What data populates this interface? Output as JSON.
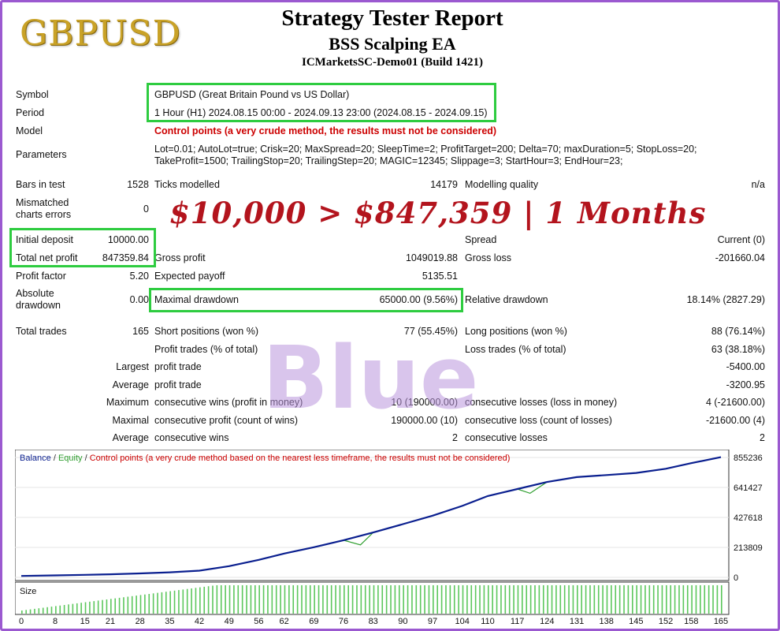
{
  "header": {
    "logo": "GBPUSD",
    "title": "Strategy Tester Report",
    "ea_name": "BSS Scalping EA",
    "server": "ICMarketsSC-Demo01 (Build 1421)"
  },
  "settings": {
    "symbol_label": "Symbol",
    "symbol_value": "GBPUSD (Great Britain Pound vs US Dollar)",
    "period_label": "Period",
    "period_value": "1 Hour (H1) 2024.08.15 00:00 - 2024.09.13 23:00 (2024.08.15 - 2024.09.15)",
    "model_label": "Model",
    "model_value": "Control points (a very crude method, the results must not be considered)",
    "parameters_label": "Parameters",
    "parameters_line1": "Lot=0.01; AutoLot=true; Crisk=20; MaxSpread=20; SleepTime=2; ProfitTarget=200; Delta=70; maxDuration=5; StopLoss=20;",
    "parameters_line2": "TakeProfit=1500; TrailingStop=20; TrailingStep=20; MAGIC=12345; Slippage=3; StartHour=3; EndHour=23;"
  },
  "stats": {
    "bars_label": "Bars in test",
    "bars_value": "1528",
    "ticks_label": "Ticks modelled",
    "ticks_value": "14179",
    "quality_label": "Modelling quality",
    "quality_value": "n/a",
    "mismatch_label_1": "Mismatched",
    "mismatch_label_2": "charts errors",
    "mismatch_value": "0",
    "initial_deposit_label": "Initial deposit",
    "initial_deposit_value": "10000.00",
    "spread_label": "Spread",
    "spread_value": "Current (0)",
    "net_profit_label": "Total net profit",
    "net_profit_value": "847359.84",
    "gross_profit_label": "Gross profit",
    "gross_profit_value": "1049019.88",
    "gross_loss_label": "Gross loss",
    "gross_loss_value": "-201660.04",
    "profit_factor_label": "Profit factor",
    "profit_factor_value": "5.20",
    "expected_payoff_label": "Expected payoff",
    "expected_payoff_value": "5135.51",
    "abs_dd_label_1": "Absolute",
    "abs_dd_label_2": "drawdown",
    "abs_dd_value": "0.00",
    "max_dd_label": "Maximal drawdown",
    "max_dd_value": "65000.00 (9.56%)",
    "rel_dd_label": "Relative drawdown",
    "rel_dd_value": "18.14% (2827.29)",
    "total_trades_label": "Total trades",
    "total_trades_value": "165",
    "short_label": "Short positions (won %)",
    "short_value": "77 (55.45%)",
    "long_label": "Long positions (won %)",
    "long_value": "88 (76.14%)",
    "profit_trades_label": "Profit trades (% of total)",
    "loss_trades_label": "Loss trades (% of total)",
    "loss_trades_value": "63 (38.18%)",
    "largest_label": "Largest",
    "largest_profit_label": "profit trade",
    "largest_loss_value": "-5400.00",
    "average_label": "Average",
    "average_profit_label": "profit trade",
    "average_loss_value": "-3200.95",
    "maximum_label": "Maximum",
    "max_cons_wins_label": "consecutive wins (profit in money)",
    "max_cons_wins_value": "10 (190000.00)",
    "max_cons_losses_label": "consecutive losses (loss in money)",
    "max_cons_losses_value": "4 (-21600.00)",
    "maximal_label": "Maximal",
    "maximal_profit_label": "consecutive profit (count of wins)",
    "maximal_profit_value": "190000.00 (10)",
    "maximal_loss_label": "consecutive loss (count of losses)",
    "maximal_loss_value": "-21600.00 (4)",
    "avg_label": "Average",
    "avg_wins_label": "consecutive wins",
    "avg_wins_value": "2",
    "avg_losses_label": "consecutive losses",
    "avg_losses_value": "2"
  },
  "promo": "$10,000 > $847,359 | 1 Months",
  "watermark": "Blue",
  "chart_legend": {
    "balance": "Balance",
    "sep1": " / ",
    "equity": "Equity",
    "sep2": " / ",
    "note": "Control points (a very crude method based on the nearest less timeframe, the results must not be considered)"
  },
  "size_label": "Size",
  "colors": {
    "balance": "#0a1f8f",
    "equity": "#2e9e2e",
    "highlight_box": "#2ecc40",
    "promo": "#b3141d",
    "model_warning": "#cc0000",
    "frame": "#9b59d0"
  },
  "chart_data": {
    "type": "line",
    "title": "",
    "y_ticks": [
      0,
      213809,
      427618,
      641427,
      855236
    ],
    "x_ticks": [
      0,
      8,
      15,
      21,
      28,
      35,
      42,
      49,
      56,
      62,
      69,
      76,
      83,
      90,
      97,
      104,
      110,
      117,
      124,
      131,
      138,
      145,
      152,
      158,
      165
    ],
    "xlim": [
      0,
      165
    ],
    "ylim": [
      0,
      855236
    ],
    "series": [
      {
        "name": "Balance",
        "x": [
          0,
          8,
          15,
          21,
          28,
          35,
          42,
          49,
          56,
          62,
          69,
          76,
          83,
          90,
          97,
          104,
          110,
          117,
          124,
          131,
          138,
          145,
          152,
          158,
          165
        ],
        "values": [
          10000,
          14000,
          18000,
          22000,
          28000,
          36000,
          48000,
          80000,
          125000,
          170000,
          215000,
          265000,
          320000,
          380000,
          440000,
          510000,
          580000,
          630000,
          680000,
          715000,
          730000,
          745000,
          775000,
          815000,
          857359
        ]
      },
      {
        "name": "Equity",
        "x": [
          0,
          8,
          15,
          21,
          28,
          35,
          42,
          49,
          56,
          62,
          69,
          76,
          80,
          83,
          90,
          97,
          104,
          110,
          117,
          120,
          124,
          131,
          138,
          145,
          152,
          158,
          165
        ],
        "values": [
          10000,
          14000,
          18000,
          22000,
          28000,
          36000,
          48000,
          80000,
          125000,
          170000,
          215000,
          265000,
          232000,
          320000,
          380000,
          440000,
          510000,
          580000,
          630000,
          600000,
          680000,
          715000,
          730000,
          745000,
          775000,
          815000,
          857359
        ]
      }
    ]
  }
}
